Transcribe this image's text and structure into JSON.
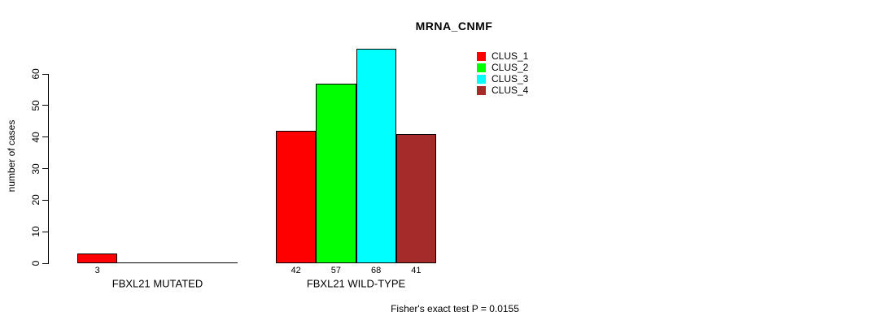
{
  "chart_data": {
    "type": "bar",
    "title": "MRNA_CNMF",
    "ylabel": "number of cases",
    "ylim": [
      0,
      68
    ],
    "yticks": [
      0,
      10,
      20,
      30,
      40,
      50,
      60
    ],
    "grid": false,
    "legend_position": "top-right",
    "categories": [
      "FBXL21 MUTATED",
      "FBXL21 WILD-TYPE"
    ],
    "series": [
      {
        "name": "CLUS_1",
        "color": "#ff0000",
        "values": [
          3,
          42
        ]
      },
      {
        "name": "CLUS_2",
        "color": "#00ff00",
        "values": [
          0,
          57
        ]
      },
      {
        "name": "CLUS_3",
        "color": "#00ffff",
        "values": [
          0,
          68
        ]
      },
      {
        "name": "CLUS_4",
        "color": "#a52a2a",
        "values": [
          0,
          41
        ]
      }
    ],
    "bar_value_labels": [
      [
        "3"
      ],
      [
        "42",
        "57",
        "68",
        "41"
      ]
    ],
    "annotation": "Fisher's exact test P = 0.0155"
  }
}
